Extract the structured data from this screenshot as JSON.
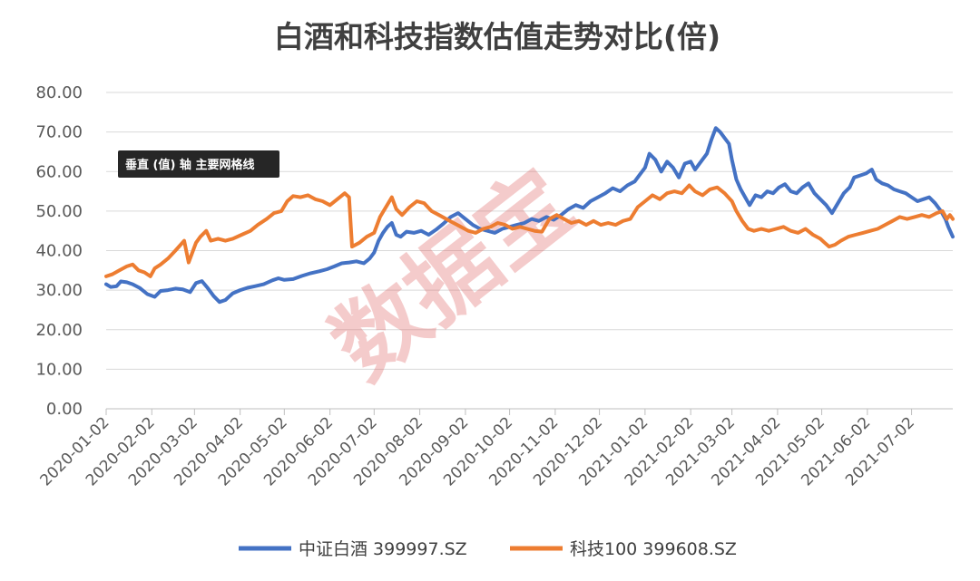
{
  "tooltip": "垂直 (值) 轴 主要网格线",
  "watermark": "数据宝",
  "colors": {
    "baijiu": "#4472C4",
    "tech": "#ED7D31",
    "grid": "#D9D9D9"
  },
  "chart_data": {
    "type": "line",
    "title": "白酒和科技指数估值走势对比(倍)",
    "xlabel": "",
    "ylabel": "",
    "ylim": [
      0,
      80
    ],
    "yticks": [
      0,
      10,
      20,
      30,
      40,
      50,
      60,
      70,
      80
    ],
    "ytick_labels": [
      "0.00",
      "10.00",
      "20.00",
      "30.00",
      "40.00",
      "50.00",
      "60.00",
      "70.00",
      "80.00"
    ],
    "xlim": [
      "2020-01-02",
      "2021-07-30"
    ],
    "xticks": [
      "2020-01-02",
      "2020-02-02",
      "2020-03-02",
      "2020-04-02",
      "2020-05-02",
      "2020-06-02",
      "2020-07-02",
      "2020-08-02",
      "2020-09-02",
      "2020-10-02",
      "2020-11-02",
      "2020-12-02",
      "2021-01-02",
      "2021-02-02",
      "2021-03-02",
      "2021-04-02",
      "2021-05-02",
      "2021-06-02",
      "2021-07-02"
    ],
    "grid": true,
    "legend": "bottom",
    "series": [
      {
        "name": "中证白酒 399997.SZ",
        "color": "#4472C4",
        "points": [
          [
            "2020-01-02",
            31.5
          ],
          [
            "2020-01-05",
            30.8
          ],
          [
            "2020-01-09",
            31.0
          ],
          [
            "2020-01-12",
            32.2
          ],
          [
            "2020-01-16",
            32.0
          ],
          [
            "2020-01-20",
            31.5
          ],
          [
            "2020-01-25",
            30.5
          ],
          [
            "2020-01-30",
            29.0
          ],
          [
            "2020-02-04",
            28.3
          ],
          [
            "2020-02-08",
            29.8
          ],
          [
            "2020-02-13",
            30.0
          ],
          [
            "2020-02-18",
            30.4
          ],
          [
            "2020-02-23",
            30.2
          ],
          [
            "2020-02-28",
            29.5
          ],
          [
            "2020-03-03",
            31.8
          ],
          [
            "2020-03-07",
            32.3
          ],
          [
            "2020-03-11",
            30.5
          ],
          [
            "2020-03-15",
            28.5
          ],
          [
            "2020-03-19",
            27.0
          ],
          [
            "2020-03-23",
            27.5
          ],
          [
            "2020-03-28",
            29.2
          ],
          [
            "2020-04-02",
            30.0
          ],
          [
            "2020-04-07",
            30.6
          ],
          [
            "2020-04-12",
            31.0
          ],
          [
            "2020-04-18",
            31.5
          ],
          [
            "2020-04-24",
            32.5
          ],
          [
            "2020-04-28",
            33.0
          ],
          [
            "2020-05-02",
            32.6
          ],
          [
            "2020-05-08",
            32.8
          ],
          [
            "2020-05-14",
            33.6
          ],
          [
            "2020-05-20",
            34.3
          ],
          [
            "2020-05-26",
            34.8
          ],
          [
            "2020-05-31",
            35.3
          ],
          [
            "2020-06-05",
            36.0
          ],
          [
            "2020-06-10",
            36.8
          ],
          [
            "2020-06-15",
            37.0
          ],
          [
            "2020-06-20",
            37.3
          ],
          [
            "2020-06-25",
            36.8
          ],
          [
            "2020-06-29",
            38.0
          ],
          [
            "2020-07-02",
            39.5
          ],
          [
            "2020-07-05",
            42.5
          ],
          [
            "2020-07-08",
            44.5
          ],
          [
            "2020-07-11",
            46.0
          ],
          [
            "2020-07-14",
            47.0
          ],
          [
            "2020-07-17",
            44.0
          ],
          [
            "2020-07-20",
            43.5
          ],
          [
            "2020-07-24",
            44.8
          ],
          [
            "2020-07-29",
            44.5
          ],
          [
            "2020-08-03",
            45.0
          ],
          [
            "2020-08-08",
            44.0
          ],
          [
            "2020-08-13",
            45.3
          ],
          [
            "2020-08-18",
            46.8
          ],
          [
            "2020-08-23",
            48.5
          ],
          [
            "2020-08-28",
            49.5
          ],
          [
            "2020-09-02",
            48.0
          ],
          [
            "2020-09-07",
            46.5
          ],
          [
            "2020-09-12",
            45.5
          ],
          [
            "2020-09-17",
            45.0
          ],
          [
            "2020-09-22",
            44.5
          ],
          [
            "2020-09-27",
            45.5
          ],
          [
            "2020-10-02",
            46.0
          ],
          [
            "2020-10-07",
            46.5
          ],
          [
            "2020-10-12",
            47.0
          ],
          [
            "2020-10-17",
            48.0
          ],
          [
            "2020-10-22",
            47.5
          ],
          [
            "2020-10-27",
            48.5
          ],
          [
            "2020-11-01",
            47.8
          ],
          [
            "2020-11-06",
            49.0
          ],
          [
            "2020-11-11",
            50.5
          ],
          [
            "2020-11-16",
            51.5
          ],
          [
            "2020-11-21",
            50.8
          ],
          [
            "2020-11-26",
            52.5
          ],
          [
            "2020-12-01",
            53.5
          ],
          [
            "2020-12-06",
            54.5
          ],
          [
            "2020-12-11",
            55.8
          ],
          [
            "2020-12-16",
            55.0
          ],
          [
            "2020-12-21",
            56.5
          ],
          [
            "2020-12-26",
            57.5
          ],
          [
            "2020-12-29",
            59.0
          ],
          [
            "2021-01-02",
            61.0
          ],
          [
            "2021-01-05",
            64.5
          ],
          [
            "2021-01-09",
            63.0
          ],
          [
            "2021-01-13",
            60.0
          ],
          [
            "2021-01-17",
            62.5
          ],
          [
            "2021-01-21",
            61.0
          ],
          [
            "2021-01-25",
            58.5
          ],
          [
            "2021-01-29",
            62.0
          ],
          [
            "2021-02-02",
            62.5
          ],
          [
            "2021-02-05",
            60.5
          ],
          [
            "2021-02-09",
            62.5
          ],
          [
            "2021-02-13",
            64.5
          ],
          [
            "2021-02-16",
            68.0
          ],
          [
            "2021-02-19",
            71.0
          ],
          [
            "2021-02-22",
            70.0
          ],
          [
            "2021-02-25",
            68.5
          ],
          [
            "2021-02-28",
            67.0
          ],
          [
            "2021-03-02",
            63.0
          ],
          [
            "2021-03-05",
            58.0
          ],
          [
            "2021-03-08",
            55.5
          ],
          [
            "2021-03-11",
            53.5
          ],
          [
            "2021-03-14",
            51.5
          ],
          [
            "2021-03-18",
            54.0
          ],
          [
            "2021-03-22",
            53.5
          ],
          [
            "2021-03-26",
            55.0
          ],
          [
            "2021-03-30",
            54.5
          ],
          [
            "2021-04-03",
            56.0
          ],
          [
            "2021-04-07",
            56.8
          ],
          [
            "2021-04-11",
            55.0
          ],
          [
            "2021-04-15",
            54.5
          ],
          [
            "2021-04-19",
            56.0
          ],
          [
            "2021-04-23",
            57.0
          ],
          [
            "2021-04-27",
            54.5
          ],
          [
            "2021-05-01",
            53.0
          ],
          [
            "2021-05-05",
            51.5
          ],
          [
            "2021-05-09",
            49.5
          ],
          [
            "2021-05-13",
            52.0
          ],
          [
            "2021-05-17",
            54.5
          ],
          [
            "2021-05-21",
            56.0
          ],
          [
            "2021-05-24",
            58.5
          ],
          [
            "2021-05-28",
            59.0
          ],
          [
            "2021-06-01",
            59.5
          ],
          [
            "2021-06-05",
            60.5
          ],
          [
            "2021-06-08",
            58.0
          ],
          [
            "2021-06-12",
            57.0
          ],
          [
            "2021-06-16",
            56.5
          ],
          [
            "2021-06-20",
            55.5
          ],
          [
            "2021-06-24",
            55.0
          ],
          [
            "2021-06-28",
            54.5
          ],
          [
            "2021-07-02",
            53.5
          ],
          [
            "2021-07-06",
            52.5
          ],
          [
            "2021-07-10",
            53.0
          ],
          [
            "2021-07-14",
            53.5
          ],
          [
            "2021-07-18",
            52.0
          ],
          [
            "2021-07-22",
            50.0
          ],
          [
            "2021-07-25",
            48.0
          ],
          [
            "2021-07-27",
            46.0
          ],
          [
            "2021-07-30",
            43.5
          ]
        ]
      },
      {
        "name": "科技100 399608.SZ",
        "color": "#ED7D31",
        "points": [
          [
            "2020-01-02",
            33.5
          ],
          [
            "2020-01-06",
            34.0
          ],
          [
            "2020-01-11",
            35.0
          ],
          [
            "2020-01-16",
            36.0
          ],
          [
            "2020-01-20",
            36.5
          ],
          [
            "2020-01-24",
            35.0
          ],
          [
            "2020-01-28",
            34.5
          ],
          [
            "2020-02-01",
            33.5
          ],
          [
            "2020-02-04",
            35.5
          ],
          [
            "2020-02-08",
            36.5
          ],
          [
            "2020-02-13",
            38.0
          ],
          [
            "2020-02-18",
            40.0
          ],
          [
            "2020-02-24",
            42.5
          ],
          [
            "2020-02-27",
            37.0
          ],
          [
            "2020-03-03",
            42.0
          ],
          [
            "2020-03-06",
            43.5
          ],
          [
            "2020-03-10",
            45.0
          ],
          [
            "2020-03-13",
            42.5
          ],
          [
            "2020-03-18",
            43.0
          ],
          [
            "2020-03-23",
            42.5
          ],
          [
            "2020-03-28",
            43.0
          ],
          [
            "2020-04-03",
            44.0
          ],
          [
            "2020-04-09",
            45.0
          ],
          [
            "2020-04-14",
            46.5
          ],
          [
            "2020-04-20",
            48.0
          ],
          [
            "2020-04-25",
            49.5
          ],
          [
            "2020-04-30",
            50.0
          ],
          [
            "2020-05-04",
            52.5
          ],
          [
            "2020-05-08",
            53.8
          ],
          [
            "2020-05-13",
            53.5
          ],
          [
            "2020-05-18",
            54.0
          ],
          [
            "2020-05-23",
            53.0
          ],
          [
            "2020-05-28",
            52.5
          ],
          [
            "2020-06-02",
            51.5
          ],
          [
            "2020-06-07",
            53.0
          ],
          [
            "2020-06-12",
            54.5
          ],
          [
            "2020-06-15",
            53.5
          ],
          [
            "2020-06-17",
            41.0
          ],
          [
            "2020-06-22",
            42.0
          ],
          [
            "2020-06-27",
            43.5
          ],
          [
            "2020-07-02",
            44.5
          ],
          [
            "2020-07-06",
            48.5
          ],
          [
            "2020-07-10",
            51.0
          ],
          [
            "2020-07-14",
            53.5
          ],
          [
            "2020-07-17",
            50.5
          ],
          [
            "2020-07-21",
            49.0
          ],
          [
            "2020-07-26",
            51.0
          ],
          [
            "2020-07-31",
            52.5
          ],
          [
            "2020-08-05",
            52.0
          ],
          [
            "2020-08-10",
            50.0
          ],
          [
            "2020-08-15",
            49.0
          ],
          [
            "2020-08-20",
            48.0
          ],
          [
            "2020-08-25",
            47.0
          ],
          [
            "2020-08-30",
            46.0
          ],
          [
            "2020-09-04",
            45.0
          ],
          [
            "2020-09-09",
            44.5
          ],
          [
            "2020-09-14",
            45.5
          ],
          [
            "2020-09-19",
            46.0
          ],
          [
            "2020-09-24",
            47.0
          ],
          [
            "2020-09-29",
            46.5
          ],
          [
            "2020-10-04",
            45.5
          ],
          [
            "2020-10-09",
            46.0
          ],
          [
            "2020-10-14",
            45.5
          ],
          [
            "2020-10-19",
            45.0
          ],
          [
            "2020-10-24",
            44.8
          ],
          [
            "2020-10-29",
            48.0
          ],
          [
            "2020-11-03",
            49.0
          ],
          [
            "2020-11-08",
            48.0
          ],
          [
            "2020-11-13",
            47.0
          ],
          [
            "2020-11-18",
            47.5
          ],
          [
            "2020-11-23",
            46.5
          ],
          [
            "2020-11-28",
            47.5
          ],
          [
            "2020-12-03",
            46.5
          ],
          [
            "2020-12-08",
            47.0
          ],
          [
            "2020-12-13",
            46.5
          ],
          [
            "2020-12-18",
            47.5
          ],
          [
            "2020-12-23",
            48.0
          ],
          [
            "2020-12-28",
            51.0
          ],
          [
            "2021-01-02",
            52.5
          ],
          [
            "2021-01-07",
            54.0
          ],
          [
            "2021-01-12",
            53.0
          ],
          [
            "2021-01-17",
            54.5
          ],
          [
            "2021-01-22",
            55.0
          ],
          [
            "2021-01-27",
            54.5
          ],
          [
            "2021-02-01",
            56.5
          ],
          [
            "2021-02-05",
            55.0
          ],
          [
            "2021-02-10",
            54.0
          ],
          [
            "2021-02-15",
            55.5
          ],
          [
            "2021-02-20",
            56.0
          ],
          [
            "2021-02-25",
            54.5
          ],
          [
            "2021-03-02",
            52.5
          ],
          [
            "2021-03-05",
            50.0
          ],
          [
            "2021-03-09",
            47.5
          ],
          [
            "2021-03-13",
            45.5
          ],
          [
            "2021-03-17",
            45.0
          ],
          [
            "2021-03-22",
            45.5
          ],
          [
            "2021-03-27",
            45.0
          ],
          [
            "2021-04-01",
            45.5
          ],
          [
            "2021-04-06",
            46.0
          ],
          [
            "2021-04-11",
            45.0
          ],
          [
            "2021-04-16",
            44.5
          ],
          [
            "2021-04-21",
            45.5
          ],
          [
            "2021-04-26",
            44.0
          ],
          [
            "2021-05-01",
            43.0
          ],
          [
            "2021-05-04",
            42.0
          ],
          [
            "2021-05-07",
            41.0
          ],
          [
            "2021-05-11",
            41.5
          ],
          [
            "2021-05-15",
            42.5
          ],
          [
            "2021-05-20",
            43.5
          ],
          [
            "2021-05-25",
            44.0
          ],
          [
            "2021-05-30",
            44.5
          ],
          [
            "2021-06-04",
            45.0
          ],
          [
            "2021-06-09",
            45.5
          ],
          [
            "2021-06-14",
            46.5
          ],
          [
            "2021-06-19",
            47.5
          ],
          [
            "2021-06-24",
            48.5
          ],
          [
            "2021-06-29",
            48.0
          ],
          [
            "2021-07-04",
            48.5
          ],
          [
            "2021-07-09",
            49.0
          ],
          [
            "2021-07-14",
            48.5
          ],
          [
            "2021-07-19",
            49.5
          ],
          [
            "2021-07-23",
            50.0
          ],
          [
            "2021-07-26",
            48.0
          ],
          [
            "2021-07-28",
            49.0
          ],
          [
            "2021-07-30",
            48.0
          ]
        ]
      }
    ]
  }
}
